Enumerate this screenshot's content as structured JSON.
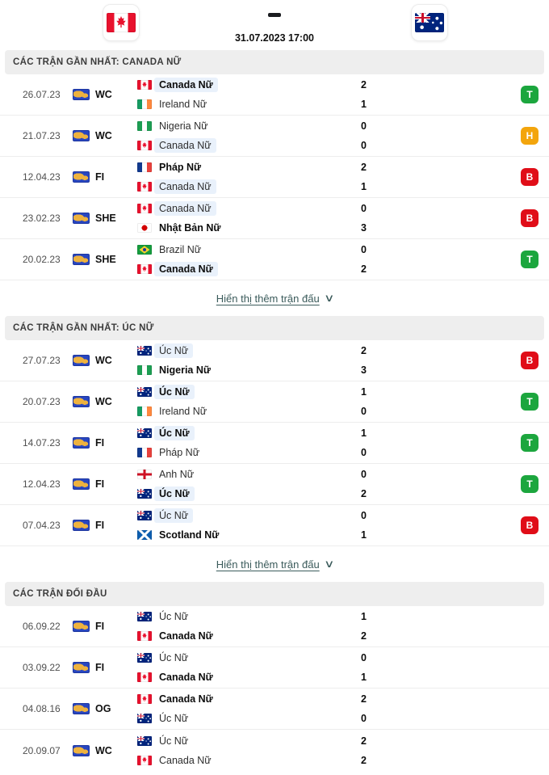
{
  "header": {
    "home_flag": "canada",
    "away_flag": "australia",
    "kickoff": "31.07.2023 17:00"
  },
  "icons": {
    "chevron_down": "∨"
  },
  "colors": {
    "win_badge": "#1ca63e",
    "draw_badge": "#f3a50c",
    "loss_badge": "#e00d18",
    "team_highlight": "#e9f1fb",
    "link": "#3b5b5b",
    "competition_badge": "#2846c0"
  },
  "show_more_label": "Hiển thị thêm trận đấu",
  "sections": [
    {
      "title": "CÁC TRẬN GẦN NHẤT: CANADA NỮ",
      "matches": [
        {
          "date": "26.07.23",
          "comp": "WC",
          "home": {
            "flag": "canada",
            "name": "Canada Nữ",
            "score": "2",
            "style": "hl bold"
          },
          "away": {
            "flag": "ireland",
            "name": "Ireland Nữ",
            "score": "1",
            "style": ""
          },
          "result": "T"
        },
        {
          "date": "21.07.23",
          "comp": "WC",
          "home": {
            "flag": "nigeria",
            "name": "Nigeria Nữ",
            "score": "0",
            "style": ""
          },
          "away": {
            "flag": "canada",
            "name": "Canada Nữ",
            "score": "0",
            "style": "hl"
          },
          "result": "H"
        },
        {
          "date": "12.04.23",
          "comp": "FI",
          "home": {
            "flag": "france",
            "name": "Pháp Nữ",
            "score": "2",
            "style": "bold"
          },
          "away": {
            "flag": "canada",
            "name": "Canada Nữ",
            "score": "1",
            "style": "hl"
          },
          "result": "B"
        },
        {
          "date": "23.02.23",
          "comp": "SHE",
          "home": {
            "flag": "canada",
            "name": "Canada Nữ",
            "score": "0",
            "style": "hl"
          },
          "away": {
            "flag": "japan",
            "name": "Nhật Bản Nữ",
            "score": "3",
            "style": "bold"
          },
          "result": "B"
        },
        {
          "date": "20.02.23",
          "comp": "SHE",
          "home": {
            "flag": "brazil",
            "name": "Brazil Nữ",
            "score": "0",
            "style": ""
          },
          "away": {
            "flag": "canada",
            "name": "Canada Nữ",
            "score": "2",
            "style": "hl bold"
          },
          "result": "T"
        }
      ]
    },
    {
      "title": "CÁC TRẬN GẦN NHẤT: ÚC NỮ",
      "matches": [
        {
          "date": "27.07.23",
          "comp": "WC",
          "home": {
            "flag": "australia",
            "name": "Úc Nữ",
            "score": "2",
            "style": "hl"
          },
          "away": {
            "flag": "nigeria",
            "name": "Nigeria Nữ",
            "score": "3",
            "style": "bold"
          },
          "result": "B"
        },
        {
          "date": "20.07.23",
          "comp": "WC",
          "home": {
            "flag": "australia",
            "name": "Úc Nữ",
            "score": "1",
            "style": "hl bold"
          },
          "away": {
            "flag": "ireland",
            "name": "Ireland Nữ",
            "score": "0",
            "style": ""
          },
          "result": "T"
        },
        {
          "date": "14.07.23",
          "comp": "FI",
          "home": {
            "flag": "australia",
            "name": "Úc Nữ",
            "score": "1",
            "style": "hl bold"
          },
          "away": {
            "flag": "france",
            "name": "Pháp Nữ",
            "score": "0",
            "style": ""
          },
          "result": "T"
        },
        {
          "date": "12.04.23",
          "comp": "FI",
          "home": {
            "flag": "england",
            "name": "Anh Nữ",
            "score": "0",
            "style": ""
          },
          "away": {
            "flag": "australia",
            "name": "Úc Nữ",
            "score": "2",
            "style": "hl bold"
          },
          "result": "T"
        },
        {
          "date": "07.04.23",
          "comp": "FI",
          "home": {
            "flag": "australia",
            "name": "Úc Nữ",
            "score": "0",
            "style": "hl"
          },
          "away": {
            "flag": "scotland",
            "name": "Scotland Nữ",
            "score": "1",
            "style": "bold"
          },
          "result": "B"
        }
      ]
    },
    {
      "title": "CÁC TRẬN ĐỐI ĐẦU",
      "matches": [
        {
          "date": "06.09.22",
          "comp": "FI",
          "home": {
            "flag": "australia",
            "name": "Úc Nữ",
            "score": "1",
            "style": ""
          },
          "away": {
            "flag": "canada",
            "name": "Canada Nữ",
            "score": "2",
            "style": "bold"
          }
        },
        {
          "date": "03.09.22",
          "comp": "FI",
          "home": {
            "flag": "australia",
            "name": "Úc Nữ",
            "score": "0",
            "style": ""
          },
          "away": {
            "flag": "canada",
            "name": "Canada Nữ",
            "score": "1",
            "style": "bold"
          }
        },
        {
          "date": "04.08.16",
          "comp": "OG",
          "home": {
            "flag": "canada",
            "name": "Canada Nữ",
            "score": "2",
            "style": "bold"
          },
          "away": {
            "flag": "australia",
            "name": "Úc Nữ",
            "score": "0",
            "style": ""
          }
        },
        {
          "date": "20.09.07",
          "comp": "WC",
          "home": {
            "flag": "australia",
            "name": "Úc Nữ",
            "score": "2",
            "style": ""
          },
          "away": {
            "flag": "canada",
            "name": "Canada Nữ",
            "score": "2",
            "style": ""
          }
        }
      ]
    }
  ]
}
